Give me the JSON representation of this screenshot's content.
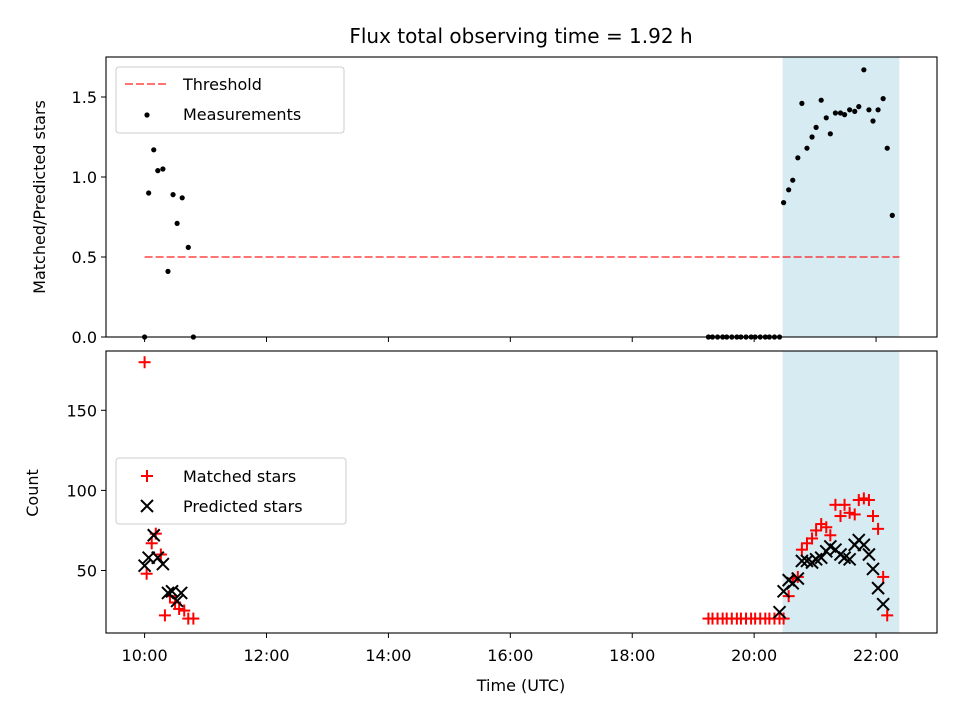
{
  "chart_data": [
    {
      "type": "scatter",
      "title": "Flux total observing time = 1.92 h",
      "xlabel": "",
      "ylabel": "Matched/Predicted stars",
      "ylim": [
        0,
        1.75
      ],
      "yticks": [
        "0.0",
        "0.5",
        "1.0",
        "1.5"
      ],
      "xlim": [
        "09:22",
        "23:00"
      ],
      "highlight_span": {
        "start": "20:28",
        "end": "22:23",
        "color": "#add8e6"
      },
      "legend_position": "upper-left",
      "threshold": {
        "name": "Threshold",
        "value": 0.5,
        "x_start": "10:00",
        "x_end": "22:23",
        "color": "#ff0000"
      },
      "series": [
        {
          "name": "Measurements",
          "color": "#000000",
          "marker": "dot",
          "points": [
            [
              "10:00",
              0.0
            ],
            [
              "10:04",
              0.9
            ],
            [
              "10:09",
              1.17
            ],
            [
              "10:13",
              1.04
            ],
            [
              "10:18",
              1.05
            ],
            [
              "10:23",
              0.41
            ],
            [
              "10:28",
              0.89
            ],
            [
              "10:32",
              0.71
            ],
            [
              "10:37",
              0.87
            ],
            [
              "10:43",
              0.56
            ],
            [
              "10:48",
              0.0
            ],
            [
              "19:15",
              0.0
            ],
            [
              "19:19",
              0.0
            ],
            [
              "19:24",
              0.0
            ],
            [
              "19:29",
              0.0
            ],
            [
              "19:33",
              0.0
            ],
            [
              "19:38",
              0.0
            ],
            [
              "19:43",
              0.0
            ],
            [
              "19:47",
              0.0
            ],
            [
              "19:52",
              0.0
            ],
            [
              "19:57",
              0.0
            ],
            [
              "20:01",
              0.0
            ],
            [
              "20:06",
              0.0
            ],
            [
              "20:11",
              0.0
            ],
            [
              "20:15",
              0.0
            ],
            [
              "20:20",
              0.0
            ],
            [
              "20:25",
              0.0
            ],
            [
              "20:29",
              0.84
            ],
            [
              "20:34",
              0.92
            ],
            [
              "20:38",
              0.98
            ],
            [
              "20:43",
              1.12
            ],
            [
              "20:47",
              1.46
            ],
            [
              "20:52",
              1.18
            ],
            [
              "20:57",
              1.25
            ],
            [
              "21:01",
              1.31
            ],
            [
              "21:06",
              1.48
            ],
            [
              "21:11",
              1.37
            ],
            [
              "21:15",
              1.27
            ],
            [
              "21:20",
              1.4
            ],
            [
              "21:25",
              1.4
            ],
            [
              "21:29",
              1.39
            ],
            [
              "21:34",
              1.42
            ],
            [
              "21:39",
              1.41
            ],
            [
              "21:43",
              1.44
            ],
            [
              "21:48",
              1.67
            ],
            [
              "21:53",
              1.42
            ],
            [
              "21:57",
              1.35
            ],
            [
              "22:02",
              1.42
            ],
            [
              "22:07",
              1.49
            ],
            [
              "22:11",
              1.18
            ],
            [
              "22:16",
              0.76
            ]
          ]
        }
      ]
    },
    {
      "type": "scatter",
      "xlabel": "Time (UTC)",
      "ylabel": "Count",
      "ylim": [
        11,
        187
      ],
      "yticks": [
        "50",
        "100",
        "150"
      ],
      "xticks": [
        "10:00",
        "12:00",
        "14:00",
        "16:00",
        "18:00",
        "20:00",
        "22:00"
      ],
      "xlim": [
        "09:22",
        "23:00"
      ],
      "highlight_span": {
        "start": "20:28",
        "end": "22:23",
        "color": "#add8e6"
      },
      "legend_position": "center-left",
      "series": [
        {
          "name": "Matched stars",
          "color": "#ff0000",
          "marker": "plus",
          "points": [
            [
              "10:00",
              180
            ],
            [
              "10:02",
              48
            ],
            [
              "10:07",
              67
            ],
            [
              "10:11",
              73
            ],
            [
              "10:16",
              60
            ],
            [
              "10:20",
              22
            ],
            [
              "10:25",
              34
            ],
            [
              "10:30",
              30
            ],
            [
              "10:34",
              26
            ],
            [
              "10:39",
              25
            ],
            [
              "10:43",
              20
            ],
            [
              "10:48",
              20
            ],
            [
              "19:15",
              20
            ],
            [
              "19:19",
              20
            ],
            [
              "19:24",
              20
            ],
            [
              "19:29",
              20
            ],
            [
              "19:33",
              20
            ],
            [
              "19:38",
              20
            ],
            [
              "19:43",
              20
            ],
            [
              "19:47",
              20
            ],
            [
              "19:52",
              20
            ],
            [
              "19:57",
              20
            ],
            [
              "20:01",
              20
            ],
            [
              "20:06",
              20
            ],
            [
              "20:11",
              20
            ],
            [
              "20:15",
              20
            ],
            [
              "20:20",
              20
            ],
            [
              "20:25",
              20
            ],
            [
              "20:29",
              20
            ],
            [
              "20:34",
              34
            ],
            [
              "20:38",
              45
            ],
            [
              "20:43",
              46
            ],
            [
              "20:47",
              63
            ],
            [
              "20:52",
              67
            ],
            [
              "20:57",
              70
            ],
            [
              "21:01",
              75
            ],
            [
              "21:06",
              79
            ],
            [
              "21:11",
              77
            ],
            [
              "21:15",
              72
            ],
            [
              "21:20",
              91
            ],
            [
              "21:25",
              84
            ],
            [
              "21:29",
              91
            ],
            [
              "21:34",
              86
            ],
            [
              "21:39",
              85
            ],
            [
              "21:43",
              94
            ],
            [
              "21:48",
              95
            ],
            [
              "21:53",
              94
            ],
            [
              "21:57",
              84
            ],
            [
              "22:02",
              76
            ],
            [
              "22:07",
              46
            ],
            [
              "22:11",
              22
            ]
          ]
        },
        {
          "name": "Predicted stars",
          "color": "#000000",
          "marker": "x",
          "points": [
            [
              "10:00",
              53
            ],
            [
              "10:04",
              58
            ],
            [
              "10:09",
              72
            ],
            [
              "10:13",
              58
            ],
            [
              "10:18",
              54
            ],
            [
              "10:23",
              36
            ],
            [
              "10:27",
              37
            ],
            [
              "10:32",
              31
            ],
            [
              "10:36",
              36
            ],
            [
              "20:25",
              24
            ],
            [
              "20:29",
              37
            ],
            [
              "20:34",
              44
            ],
            [
              "20:38",
              42
            ],
            [
              "20:43",
              45
            ],
            [
              "20:47",
              56
            ],
            [
              "20:52",
              56
            ],
            [
              "20:57",
              55
            ],
            [
              "21:01",
              57
            ],
            [
              "21:06",
              58
            ],
            [
              "21:11",
              62
            ],
            [
              "21:15",
              65
            ],
            [
              "21:20",
              63
            ],
            [
              "21:25",
              60
            ],
            [
              "21:29",
              58
            ],
            [
              "21:34",
              57
            ],
            [
              "21:39",
              66
            ],
            [
              "21:43",
              69
            ],
            [
              "21:48",
              66
            ],
            [
              "21:53",
              60
            ],
            [
              "21:57",
              51
            ],
            [
              "22:02",
              39
            ],
            [
              "22:07",
              29
            ]
          ]
        }
      ]
    }
  ]
}
